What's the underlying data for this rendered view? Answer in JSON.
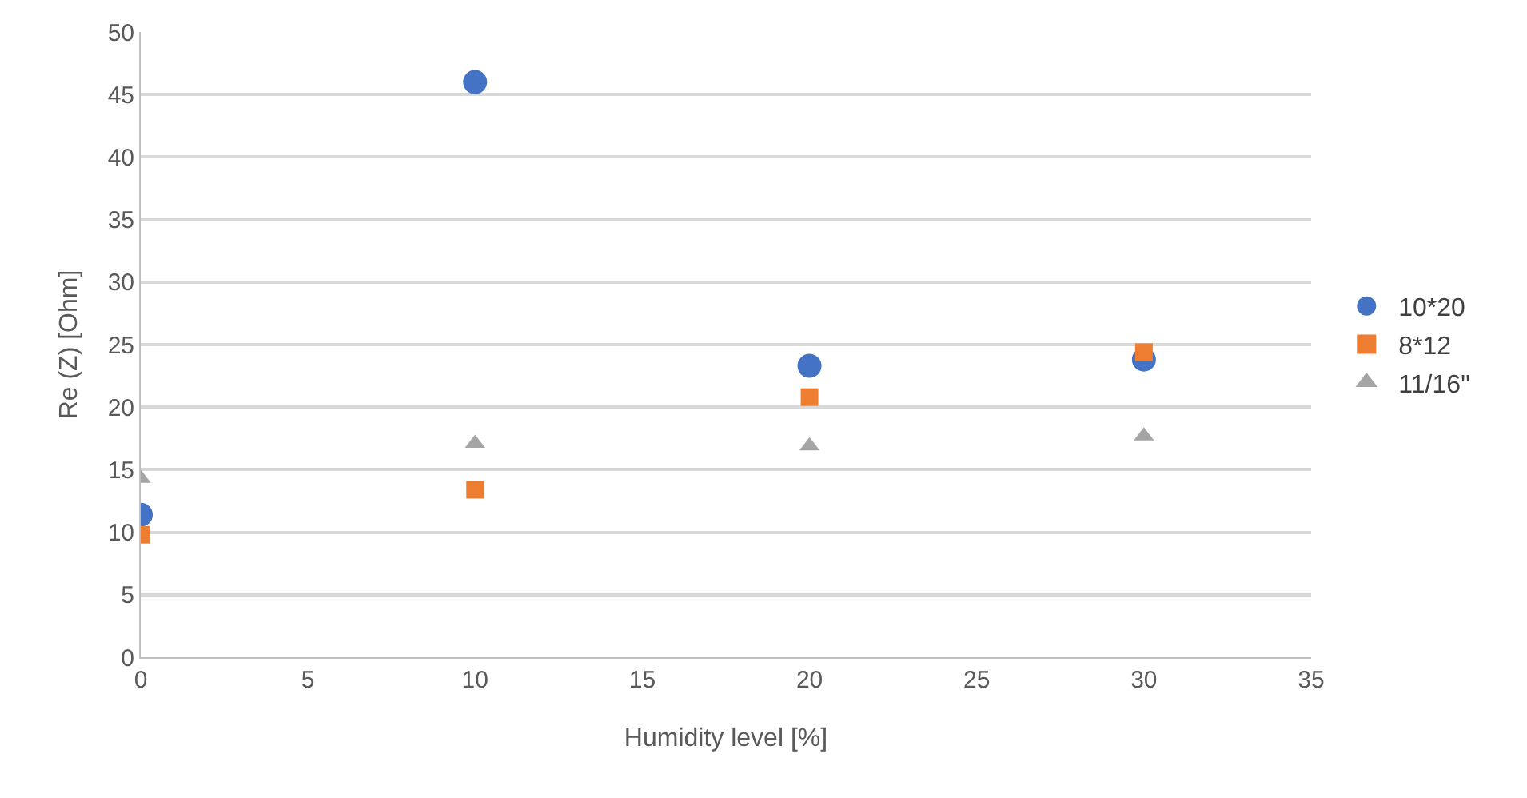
{
  "chart_data": {
    "type": "scatter",
    "xlabel": "Humidity level [%]",
    "ylabel": "Re (Z) [Ohm]",
    "x": [
      0,
      10,
      20,
      30
    ],
    "series": [
      {
        "name": "10*20",
        "color": "#4472c4",
        "marker": "circle",
        "values": [
          11.4,
          46.0,
          23.3,
          23.8
        ]
      },
      {
        "name": "8*12",
        "color": "#ed7d31",
        "marker": "square",
        "values": [
          9.8,
          13.4,
          20.8,
          24.4
        ]
      },
      {
        "name": "11/16''",
        "color": "#a5a5a5",
        "marker": "triangle",
        "values": [
          14.3,
          17.1,
          16.9,
          17.7
        ]
      }
    ],
    "xlim": [
      0,
      35
    ],
    "xticks": [
      0,
      5,
      10,
      15,
      20,
      25,
      30,
      35
    ],
    "ylim": [
      0,
      50
    ],
    "yticks": [
      0,
      5,
      10,
      15,
      20,
      25,
      30,
      35,
      40,
      45,
      50
    ],
    "grid": "y",
    "legend": "right"
  }
}
